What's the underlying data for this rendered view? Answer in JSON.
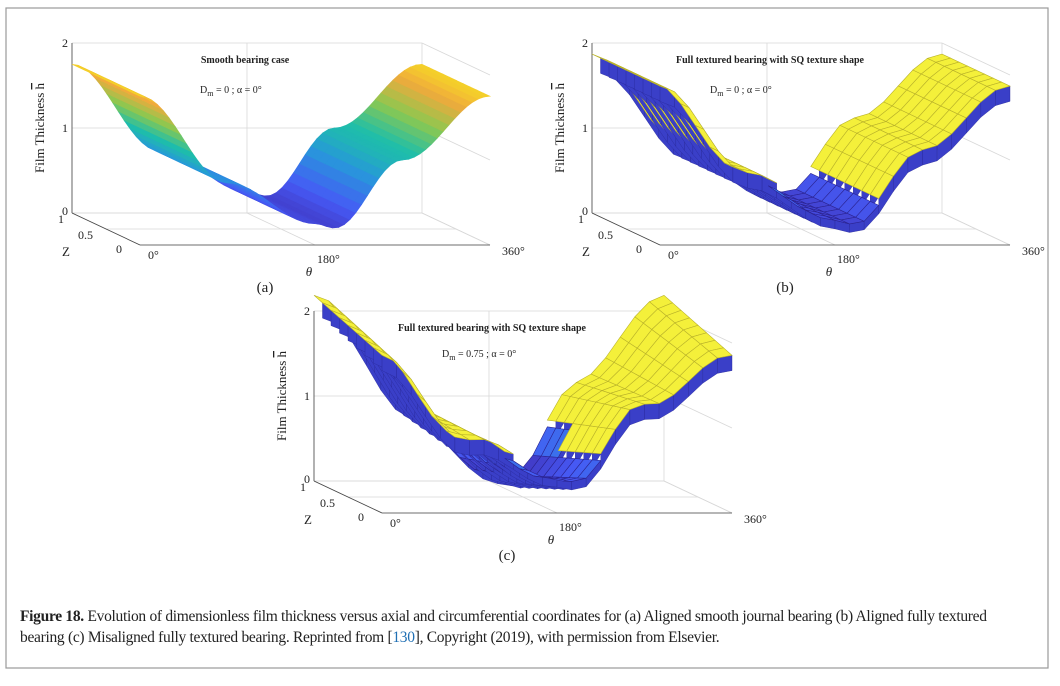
{
  "figure": {
    "label": "Figure 18.",
    "caption_before": " Evolution of dimensionless film thickness versus axial and circumferential coordinates for (a) Aligned smooth journal bearing (b) Aligned fully textured bearing (c) Misaligned fully textured bearing. Reprinted from [",
    "ref": "130",
    "caption_after": "], Copyright (2019), with permission from Elsevier.",
    "colors": {
      "ref_link": "#1f6fb4",
      "border": "#9a9a9a",
      "surface_low": "#3e26a8",
      "surface_high": "#f9fb15"
    }
  },
  "chart_data": [
    {
      "type": "surface3d",
      "panel": "(a)",
      "title": "Smooth bearing case",
      "annotation": {
        "D": "D",
        "sub": "m",
        "rest": " = 0  ;  α = 0°"
      },
      "ylabel": "Film Thickness ",
      "ylabel_symbol": "h",
      "xlabel": "θ",
      "zlabel": "Z",
      "h_ticks": [
        "0",
        "1",
        "2"
      ],
      "z_ticks": [
        "0",
        "0.5",
        "1"
      ],
      "theta_ticks": [
        "0°",
        "180°",
        "360°"
      ],
      "h_range": [
        0,
        2
      ],
      "z_range": [
        0,
        1
      ],
      "theta_range": [
        0,
        360
      ],
      "textured": false,
      "misaligned": false,
      "profile_theta": [
        0,
        90,
        180,
        200,
        270,
        360
      ],
      "profile_h": [
        1.75,
        0.73,
        0.25,
        0.2,
        1.0,
        1.75
      ],
      "colormap": "parula"
    },
    {
      "type": "surface3d",
      "panel": "(b)",
      "title": "Full textured bearing with SQ texture shape",
      "annotation": {
        "D": "D",
        "sub": "m",
        "rest": " = 0  ;  α = 0°"
      },
      "ylabel": "Film Thickness ",
      "ylabel_symbol": "h",
      "xlabel": "θ",
      "zlabel": "Z",
      "h_ticks": [
        "0",
        "1",
        "2"
      ],
      "z_ticks": [
        "0",
        "0.5",
        "1"
      ],
      "theta_ticks": [
        "0°",
        "180°",
        "360°"
      ],
      "h_range": [
        0,
        2
      ],
      "z_range": [
        0,
        1
      ],
      "theta_range": [
        0,
        360
      ],
      "textured": true,
      "misaligned": false,
      "profile_theta": [
        0,
        90,
        180,
        200,
        270,
        360
      ],
      "profile_h": [
        1.75,
        0.73,
        0.25,
        0.2,
        1.0,
        1.75
      ],
      "colormap": "parula"
    },
    {
      "type": "surface3d",
      "panel": "(c)",
      "title": "Full textured bearing with SQ texture shape",
      "annotation": {
        "D": "D",
        "sub": "m",
        "rest": " = 0.75  ;  α = 0°"
      },
      "ylabel": "Film Thickness ",
      "ylabel_symbol": "h",
      "xlabel": "θ",
      "zlabel": "Z",
      "h_ticks": [
        "0",
        "1",
        "2"
      ],
      "z_ticks": [
        "0",
        "0.5",
        "1"
      ],
      "theta_ticks": [
        "0°",
        "180°",
        "360°"
      ],
      "h_range": [
        0,
        2
      ],
      "z_range": [
        0,
        1
      ],
      "theta_range": [
        0,
        360
      ],
      "textured": true,
      "misaligned": true,
      "profile_theta": [
        0,
        90,
        180,
        200,
        270,
        360
      ],
      "profile_h": [
        1.9,
        0.8,
        0.2,
        0.15,
        1.1,
        1.9
      ],
      "colormap": "parula"
    }
  ]
}
